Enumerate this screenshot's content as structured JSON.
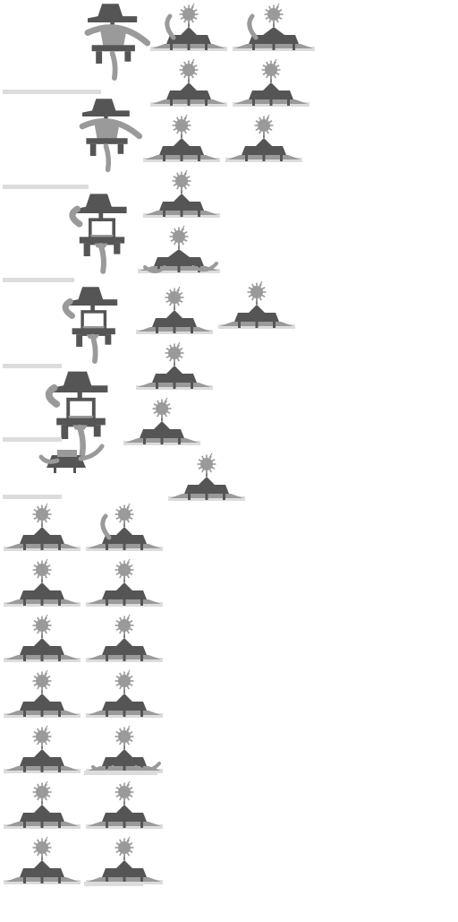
{
  "sheet": {
    "kind": "sprite-sheet",
    "background": "#ffffff",
    "colors": {
      "dark": "#555555",
      "mid": "#9a9a9a",
      "light": "#dcdcdc",
      "white": "#ffffff"
    },
    "sprite_types": [
      "mech-walker",
      "creature-pose",
      "spiky-bomb",
      "shadow-bar"
    ]
  }
}
